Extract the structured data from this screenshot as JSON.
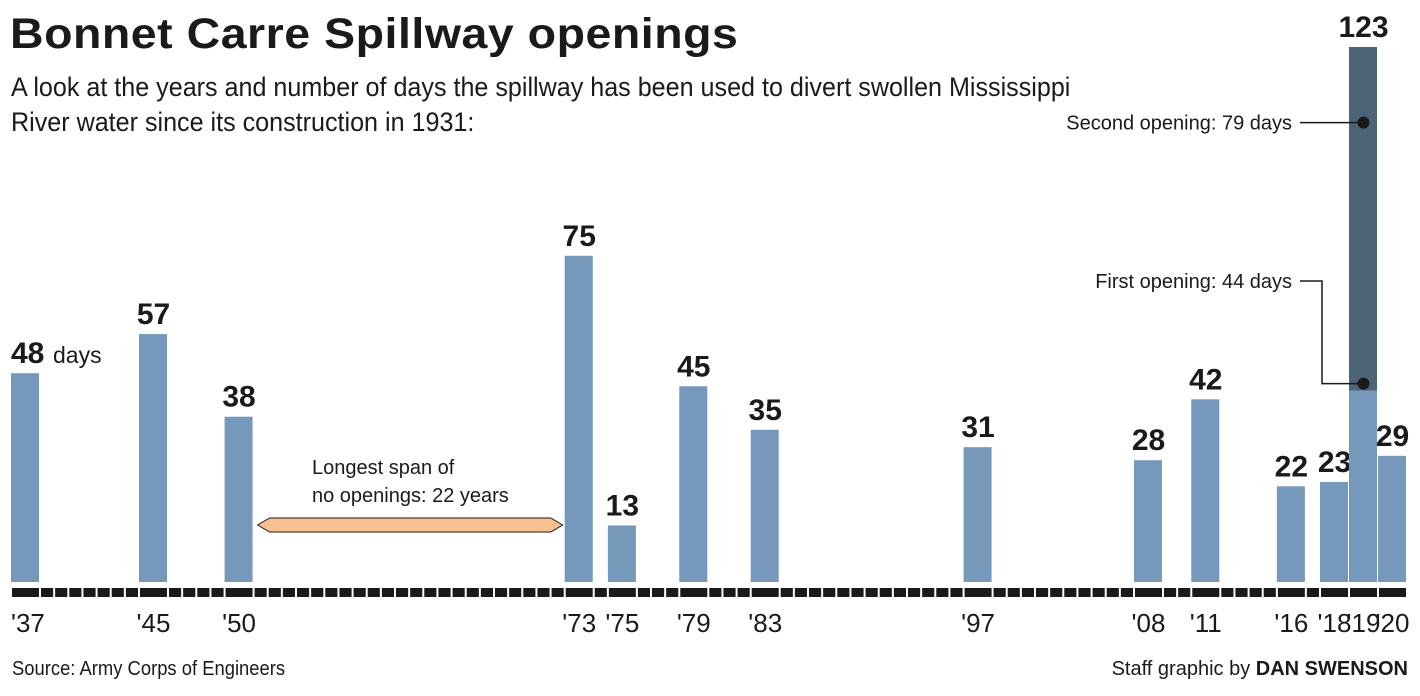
{
  "chart_data": {
    "type": "bar",
    "title": "Bonnet Carre Spillway openings",
    "subtitle": "A look at the years and number of days the spillway has been used to divert swollen Mississippi River water since its construction in 1931:",
    "x_range": [
      1937,
      2020
    ],
    "categories": [
      "'37",
      "'45",
      "'50",
      "'73",
      "'75",
      "'79",
      "'83",
      "'97",
      "'08",
      "'11",
      "'16",
      "'18",
      "'19",
      "'20"
    ],
    "years": [
      1937,
      1945,
      1950,
      1973,
      1975,
      1979,
      1983,
      1997,
      2008,
      2011,
      2016,
      2018,
      2019,
      2020
    ],
    "values": [
      48,
      57,
      38,
      75,
      13,
      45,
      35,
      31,
      28,
      42,
      22,
      23,
      123,
      29
    ],
    "value_labels": [
      "48",
      "57",
      "38",
      "75",
      "13",
      "45",
      "35",
      "31",
      "28",
      "42",
      "22",
      "23",
      "123",
      "29"
    ],
    "first_label_unit": "days",
    "stacked_2019": [
      {
        "name": "First opening: 44 days",
        "value": 44,
        "color": "#7598bb"
      },
      {
        "name": "Second opening: 79 days",
        "value": 79,
        "color": "#4d6378"
      }
    ],
    "annotation_span": {
      "text_line1": "Longest span of",
      "text_line2": "no openings: 22 years",
      "from": 1951,
      "to": 1972,
      "color": "#f8c08f"
    },
    "colors": {
      "bar": "#7598bb",
      "bar_dark": "#4d6378",
      "axis": "#1a1a1a"
    },
    "grid": false,
    "ylim": [
      0,
      123
    ]
  },
  "source": "Source: Army Corps of Engineers",
  "credit_prefix": "Staff graphic by ",
  "credit_name": "DAN SWENSON"
}
